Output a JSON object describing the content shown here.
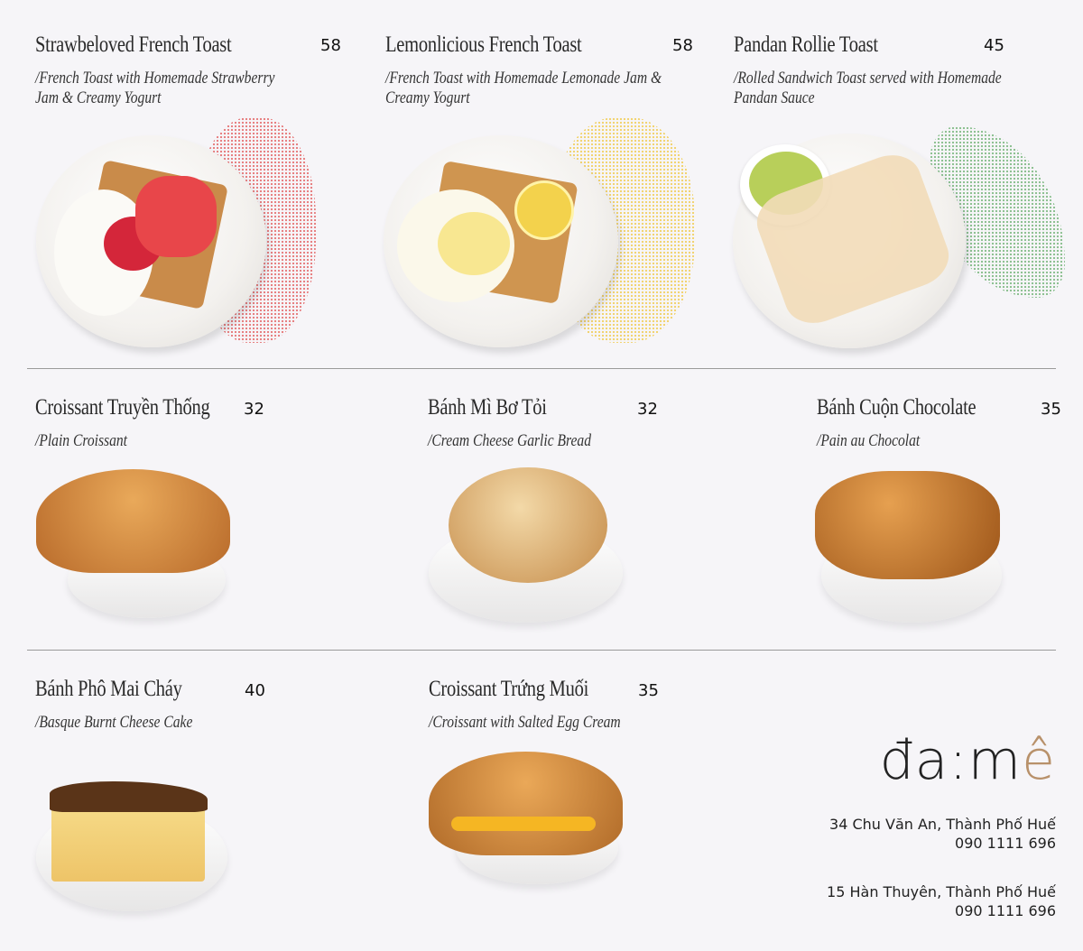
{
  "menu": [
    {
      "name": "Strawbeloved French Toast",
      "price": "58",
      "desc1": "/French Toast with Homemade Strawberry",
      "desc2": "Jam & Creamy Yogurt"
    },
    {
      "name": "Lemonlicious French Toast",
      "price": "58",
      "desc1": "/French Toast with Homemade Lemonade Jam &",
      "desc2": "Creamy Yogurt"
    },
    {
      "name": "Pandan Rollie Toast",
      "price": "45",
      "desc1": "/Rolled Sandwich Toast served with Homemade",
      "desc2": "Pandan Sauce"
    },
    {
      "name": "Croissant Truyền Thống",
      "price": "32",
      "desc1": "/Plain Croissant"
    },
    {
      "name": "Bánh Mì Bơ Tỏi",
      "price": "32",
      "desc1": "/Cream Cheese Garlic Bread"
    },
    {
      "name": "Bánh Cuộn Chocolate",
      "price": "35",
      "desc1": "/Pain au Chocolat"
    },
    {
      "name": "Bánh Phô Mai Cháy",
      "price": "40",
      "desc1": "/Basque Burnt Cheese Cake"
    },
    {
      "name": "Croissant Trứng Muối",
      "price": "35",
      "desc1": "/Croissant with Salted Egg Cream"
    }
  ],
  "brand": {
    "logo_main": "đa:m",
    "logo_accent": "ê",
    "accent_color": "#b8916a"
  },
  "locations": [
    {
      "address": "34 Chu Văn An, Thành Phố Huế",
      "phone": "090 1111 696"
    },
    {
      "address": "15 Hàn Thuyên, Thành Phố Huế",
      "phone": "090 1111 696"
    }
  ]
}
